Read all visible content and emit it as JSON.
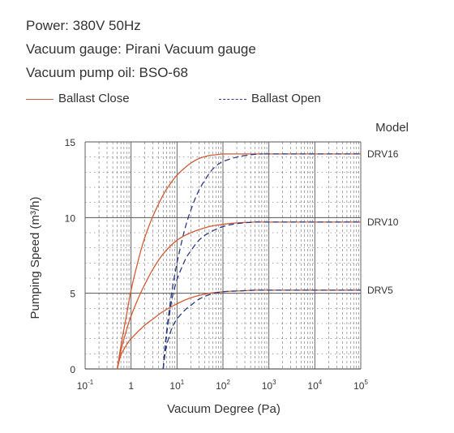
{
  "specs": {
    "power": "Power: 380V 50Hz",
    "gauge": "Vacuum gauge: Pirani Vacuum gauge",
    "oil": "Vacuum pump oil: BSO-68"
  },
  "colors": {
    "ballast_close": "#d35a33",
    "ballast_open": "#2a3a86",
    "grid": "#555555"
  },
  "chart_data": {
    "type": "line",
    "xlabel": "Vacuum Degree (Pa)",
    "ylabel": "Pumping Speed (m³/h)",
    "x_scale": "log",
    "xlim": [
      0.1,
      100000
    ],
    "ylim": [
      0,
      15
    ],
    "x_ticks": [
      {
        "base": "10",
        "exp": "-1"
      },
      {
        "base": "1",
        "exp": ""
      },
      {
        "base": "10",
        "exp": "1"
      },
      {
        "base": "10",
        "exp": "2"
      },
      {
        "base": "10",
        "exp": "3"
      },
      {
        "base": "10",
        "exp": "4"
      },
      {
        "base": "10",
        "exp": "5"
      }
    ],
    "y_ticks": [
      "0",
      "5",
      "10",
      "15"
    ],
    "model_header": "Model",
    "legend": [
      {
        "label": "Ballast Close",
        "style": "solid"
      },
      {
        "label": "Ballast Open",
        "style": "dashed"
      }
    ],
    "series": [
      {
        "model": "DRV16",
        "ballast": "close",
        "x": [
          0.5,
          0.6,
          0.8,
          1,
          1.5,
          2,
          3,
          5,
          7,
          10,
          15,
          20,
          30,
          50,
          70,
          100,
          200,
          500,
          1000,
          100000
        ],
        "y": [
          0,
          1.5,
          3.6,
          5.2,
          7.4,
          8.7,
          10.1,
          11.5,
          12.2,
          12.8,
          13.3,
          13.6,
          13.9,
          14.1,
          14.15,
          14.2,
          14.2,
          14.2,
          14.2,
          14.2
        ]
      },
      {
        "model": "DRV16",
        "ballast": "open",
        "x": [
          5,
          5.5,
          6,
          7,
          8,
          10,
          12,
          15,
          20,
          30,
          50,
          70,
          100,
          200,
          400,
          700,
          1000,
          100000
        ],
        "y": [
          0,
          1.5,
          2.6,
          4.2,
          5.4,
          7.0,
          8.1,
          9.3,
          10.5,
          11.8,
          12.9,
          13.4,
          13.7,
          14.0,
          14.15,
          14.2,
          14.2,
          14.2
        ]
      },
      {
        "model": "DRV10",
        "ballast": "close",
        "x": [
          0.5,
          0.6,
          0.8,
          1,
          1.5,
          2,
          3,
          5,
          10,
          20,
          50,
          100,
          200,
          500,
          1000,
          100000
        ],
        "y": [
          0,
          1.2,
          2.6,
          3.5,
          4.8,
          5.6,
          6.6,
          7.6,
          8.5,
          9.0,
          9.4,
          9.55,
          9.65,
          9.7,
          9.7,
          9.7
        ]
      },
      {
        "model": "DRV10",
        "ballast": "open",
        "x": [
          5,
          5.5,
          6,
          7,
          8,
          10,
          15,
          20,
          30,
          50,
          100,
          200,
          500,
          1000,
          100000
        ],
        "y": [
          0,
          1.4,
          2.4,
          3.8,
          4.8,
          5.9,
          7.2,
          7.8,
          8.5,
          9.0,
          9.4,
          9.6,
          9.7,
          9.7,
          9.7
        ]
      },
      {
        "model": "DRV5",
        "ballast": "close",
        "x": [
          0.5,
          0.6,
          0.8,
          1,
          2,
          3,
          5,
          10,
          20,
          50,
          100,
          200,
          500,
          1000,
          100000
        ],
        "y": [
          0,
          0.9,
          1.6,
          2.0,
          2.9,
          3.3,
          3.8,
          4.3,
          4.7,
          5.0,
          5.1,
          5.15,
          5.2,
          5.2,
          5.2
        ]
      },
      {
        "model": "DRV5",
        "ballast": "open",
        "x": [
          5,
          5.5,
          6,
          7,
          8,
          10,
          15,
          20,
          30,
          50,
          100,
          200,
          500,
          1000,
          100000
        ],
        "y": [
          0,
          1.0,
          1.6,
          2.3,
          2.8,
          3.3,
          3.9,
          4.2,
          4.6,
          4.9,
          5.1,
          5.15,
          5.2,
          5.2,
          5.2
        ]
      }
    ],
    "model_labels": [
      {
        "name": "DRV16",
        "y": 14.2
      },
      {
        "name": "DRV10",
        "y": 9.7
      },
      {
        "name": "DRV5",
        "y": 5.2
      }
    ],
    "grid": true
  }
}
